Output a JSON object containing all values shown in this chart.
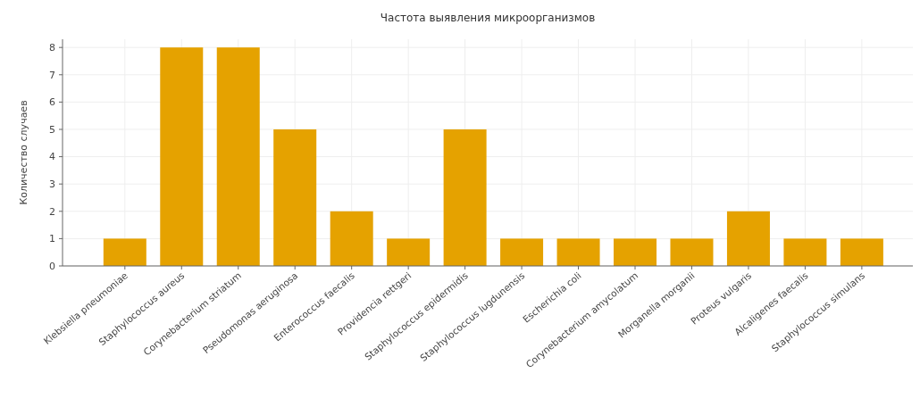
{
  "chart_data": {
    "type": "bar",
    "title": "Частота выявления микроорганизмов",
    "ylabel": "Количество случаев",
    "categories": [
      "Klebsiella pneumoniae",
      "Staphylococcus aureus",
      "Corynebacterium striatum",
      "Pseudomonas aeruginosa",
      "Enterococcus faecalis",
      "Providencia rettgeri",
      "Staphylococcus epidermidis",
      "Staphylococcus lugdunensis",
      "Escherichia coli",
      "Corynebacterium amycolatum",
      "Morganella morganii",
      "Proteus vulgaris",
      "Alcaligenes faecalis",
      "Staphylococcus simulans"
    ],
    "values": [
      1,
      8,
      8,
      5,
      2,
      1,
      5,
      1,
      1,
      1,
      1,
      2,
      1,
      1
    ],
    "color": "#e5a200",
    "ylim": [
      0,
      8.3
    ],
    "yticks": [
      0,
      1,
      2,
      3,
      4,
      5,
      6,
      7,
      8
    ],
    "grid": true
  }
}
